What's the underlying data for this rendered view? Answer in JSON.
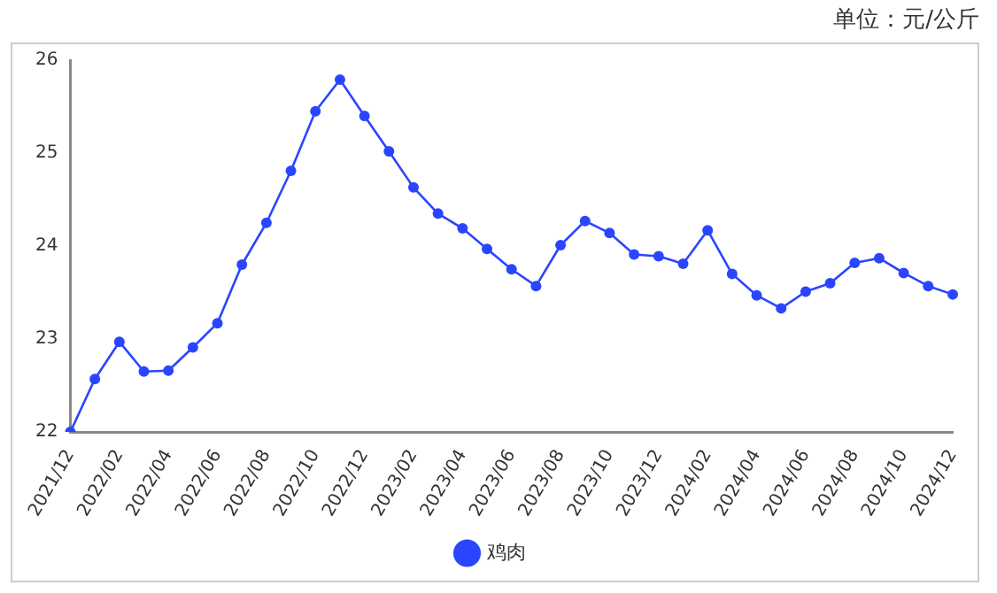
{
  "chart_data": {
    "type": "line",
    "annotations": [
      "单位：元/公斤"
    ],
    "categories": [
      "2021/12",
      null,
      "2022/02",
      null,
      "2022/04",
      null,
      "2022/06",
      null,
      "2022/08",
      null,
      "2022/10",
      null,
      "2022/12",
      null,
      "2023/02",
      null,
      "2023/04",
      null,
      "2023/06",
      null,
      "2023/08",
      null,
      "2023/10",
      null,
      "2023/12",
      null,
      "2024/02",
      null,
      "2024/04",
      null,
      "2024/06",
      null,
      "2024/08",
      null,
      "2024/10",
      null,
      "2024/12"
    ],
    "series": [
      {
        "name": "鸡肉",
        "color": "#2b45ff",
        "values": [
          22.0,
          22.57,
          22.97,
          22.65,
          22.66,
          22.91,
          23.17,
          23.8,
          24.25,
          24.81,
          25.45,
          25.79,
          25.4,
          25.02,
          24.63,
          24.35,
          24.19,
          23.97,
          23.75,
          23.57,
          24.01,
          24.27,
          24.14,
          23.91,
          23.89,
          23.81,
          24.17,
          23.7,
          23.47,
          23.33,
          23.51,
          23.6,
          23.82,
          23.87,
          23.71,
          23.57,
          23.48
        ]
      }
    ],
    "ylim": [
      22,
      26
    ],
    "yticks": [
      22,
      23,
      24,
      25,
      26
    ],
    "grid": false,
    "legend": "bottom",
    "marker": "circle",
    "line_style": "solid"
  }
}
